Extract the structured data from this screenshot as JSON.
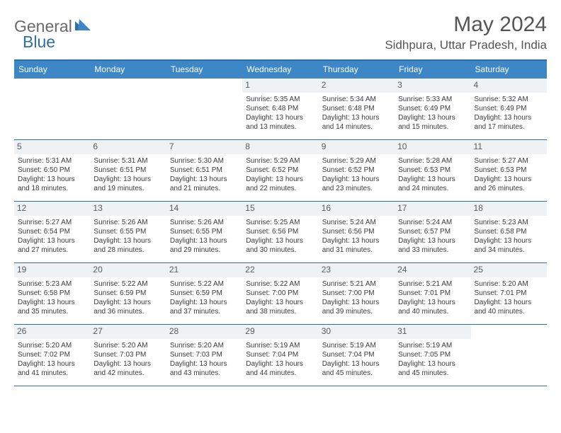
{
  "brand": {
    "part1": "General",
    "part2": "Blue"
  },
  "title": "May 2024",
  "location": "Sidhpura, Uttar Pradesh, India",
  "colors": {
    "header_bar": "#3d87c7",
    "border": "#2f6fa8",
    "daynum_bg": "#eef2f5",
    "text": "#3a3a3a",
    "logo_gray": "#6a6a6a",
    "logo_blue": "#2f6fa8"
  },
  "weekdays": [
    "Sunday",
    "Monday",
    "Tuesday",
    "Wednesday",
    "Thursday",
    "Friday",
    "Saturday"
  ],
  "weeks": [
    [
      null,
      null,
      null,
      {
        "n": "1",
        "sr": "5:35 AM",
        "ss": "6:48 PM",
        "dl": "13 hours and 13 minutes."
      },
      {
        "n": "2",
        "sr": "5:34 AM",
        "ss": "6:48 PM",
        "dl": "13 hours and 14 minutes."
      },
      {
        "n": "3",
        "sr": "5:33 AM",
        "ss": "6:49 PM",
        "dl": "13 hours and 15 minutes."
      },
      {
        "n": "4",
        "sr": "5:32 AM",
        "ss": "6:49 PM",
        "dl": "13 hours and 17 minutes."
      }
    ],
    [
      {
        "n": "5",
        "sr": "5:31 AM",
        "ss": "6:50 PM",
        "dl": "13 hours and 18 minutes."
      },
      {
        "n": "6",
        "sr": "5:31 AM",
        "ss": "6:51 PM",
        "dl": "13 hours and 19 minutes."
      },
      {
        "n": "7",
        "sr": "5:30 AM",
        "ss": "6:51 PM",
        "dl": "13 hours and 21 minutes."
      },
      {
        "n": "8",
        "sr": "5:29 AM",
        "ss": "6:52 PM",
        "dl": "13 hours and 22 minutes."
      },
      {
        "n": "9",
        "sr": "5:29 AM",
        "ss": "6:52 PM",
        "dl": "13 hours and 23 minutes."
      },
      {
        "n": "10",
        "sr": "5:28 AM",
        "ss": "6:53 PM",
        "dl": "13 hours and 24 minutes."
      },
      {
        "n": "11",
        "sr": "5:27 AM",
        "ss": "6:53 PM",
        "dl": "13 hours and 26 minutes."
      }
    ],
    [
      {
        "n": "12",
        "sr": "5:27 AM",
        "ss": "6:54 PM",
        "dl": "13 hours and 27 minutes."
      },
      {
        "n": "13",
        "sr": "5:26 AM",
        "ss": "6:55 PM",
        "dl": "13 hours and 28 minutes."
      },
      {
        "n": "14",
        "sr": "5:26 AM",
        "ss": "6:55 PM",
        "dl": "13 hours and 29 minutes."
      },
      {
        "n": "15",
        "sr": "5:25 AM",
        "ss": "6:56 PM",
        "dl": "13 hours and 30 minutes."
      },
      {
        "n": "16",
        "sr": "5:24 AM",
        "ss": "6:56 PM",
        "dl": "13 hours and 31 minutes."
      },
      {
        "n": "17",
        "sr": "5:24 AM",
        "ss": "6:57 PM",
        "dl": "13 hours and 33 minutes."
      },
      {
        "n": "18",
        "sr": "5:23 AM",
        "ss": "6:58 PM",
        "dl": "13 hours and 34 minutes."
      }
    ],
    [
      {
        "n": "19",
        "sr": "5:23 AM",
        "ss": "6:58 PM",
        "dl": "13 hours and 35 minutes."
      },
      {
        "n": "20",
        "sr": "5:22 AM",
        "ss": "6:59 PM",
        "dl": "13 hours and 36 minutes."
      },
      {
        "n": "21",
        "sr": "5:22 AM",
        "ss": "6:59 PM",
        "dl": "13 hours and 37 minutes."
      },
      {
        "n": "22",
        "sr": "5:22 AM",
        "ss": "7:00 PM",
        "dl": "13 hours and 38 minutes."
      },
      {
        "n": "23",
        "sr": "5:21 AM",
        "ss": "7:00 PM",
        "dl": "13 hours and 39 minutes."
      },
      {
        "n": "24",
        "sr": "5:21 AM",
        "ss": "7:01 PM",
        "dl": "13 hours and 40 minutes."
      },
      {
        "n": "25",
        "sr": "5:20 AM",
        "ss": "7:01 PM",
        "dl": "13 hours and 40 minutes."
      }
    ],
    [
      {
        "n": "26",
        "sr": "5:20 AM",
        "ss": "7:02 PM",
        "dl": "13 hours and 41 minutes."
      },
      {
        "n": "27",
        "sr": "5:20 AM",
        "ss": "7:03 PM",
        "dl": "13 hours and 42 minutes."
      },
      {
        "n": "28",
        "sr": "5:20 AM",
        "ss": "7:03 PM",
        "dl": "13 hours and 43 minutes."
      },
      {
        "n": "29",
        "sr": "5:19 AM",
        "ss": "7:04 PM",
        "dl": "13 hours and 44 minutes."
      },
      {
        "n": "30",
        "sr": "5:19 AM",
        "ss": "7:04 PM",
        "dl": "13 hours and 45 minutes."
      },
      {
        "n": "31",
        "sr": "5:19 AM",
        "ss": "7:05 PM",
        "dl": "13 hours and 45 minutes."
      },
      null
    ]
  ],
  "labels": {
    "sunrise": "Sunrise:",
    "sunset": "Sunset:",
    "daylight": "Daylight:"
  }
}
